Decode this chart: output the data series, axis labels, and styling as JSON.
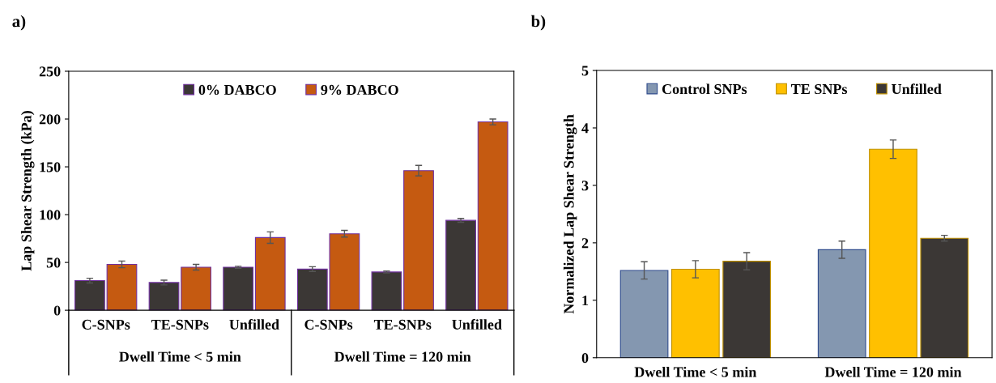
{
  "chart_data": [
    {
      "type": "bar",
      "title": "a)",
      "ylabel": "Lap Shear Strength (kPa)",
      "categories": [
        "C-SNPs",
        "TE-SNPs",
        "Unfilled",
        "C-SNPs",
        "TE-SNPs",
        "Unfilled"
      ],
      "series": [
        {
          "name": "0% DABCO",
          "color": "#3b3735",
          "values": [
            31,
            29,
            45,
            43,
            40,
            94
          ],
          "errors": [
            2.5,
            2.5,
            1,
            2.5,
            1,
            2
          ]
        },
        {
          "name": "9% DABCO",
          "color": "#c55a11",
          "values": [
            48,
            45,
            76,
            80,
            146,
            197
          ],
          "errors": [
            3.5,
            3,
            6,
            3.5,
            5.5,
            3
          ]
        }
      ],
      "annotations": [
        "Dwell Time < 5 min",
        "Dwell Time = 120 min"
      ],
      "ylim": [
        0,
        250
      ],
      "yticks": [
        0,
        50,
        100,
        150,
        200,
        250
      ],
      "grid": false,
      "legend": "top"
    },
    {
      "type": "bar",
      "title": "b)",
      "ylabel": "Normalized Lap Shear Strength",
      "categories": [
        "Dwell Time < 5 min",
        "Dwell Time = 120 min"
      ],
      "series": [
        {
          "name": "Control SNPs",
          "color": "#8497b0",
          "values": [
            1.52,
            1.88
          ],
          "errors": [
            0.15,
            0.15
          ]
        },
        {
          "name": "TE SNPs",
          "color": "#ffc000",
          "values": [
            1.54,
            3.63
          ],
          "errors": [
            0.15,
            0.16
          ]
        },
        {
          "name": "Unfilled",
          "color": "#3b3735",
          "values": [
            1.68,
            2.08
          ],
          "errors": [
            0.15,
            0.05
          ]
        }
      ],
      "ylim": [
        0,
        5
      ],
      "yticks": [
        0,
        1,
        2,
        3,
        4,
        5
      ],
      "grid": false,
      "legend": "top"
    }
  ]
}
